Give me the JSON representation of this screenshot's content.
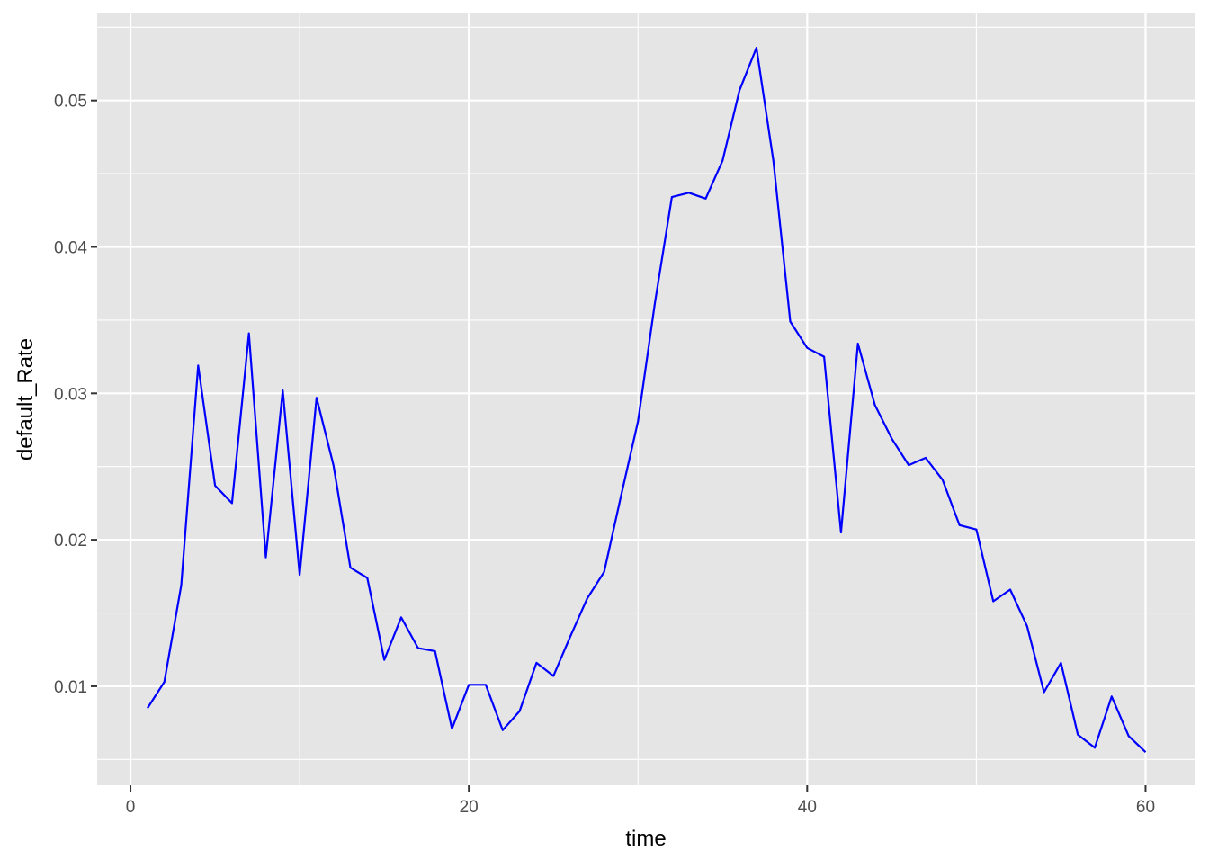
{
  "chart_data": {
    "type": "line",
    "title": "",
    "xlabel": "time",
    "ylabel": "default_Rate",
    "xlim": [
      -1.97,
      62.9
    ],
    "ylim": [
      0.00324,
      0.056
    ],
    "xticks": [
      0,
      20,
      40,
      60
    ],
    "xtick_labels": [
      "0",
      "20",
      "40",
      "60"
    ],
    "yticks": [
      0.01,
      0.02,
      0.03,
      0.04,
      0.05
    ],
    "ytick_labels": [
      "0.01",
      "0.02",
      "0.03",
      "0.04",
      "0.05"
    ],
    "grid": true,
    "legend": "none",
    "colors": {
      "line": "#0000FF",
      "panel": "#E5E5E5",
      "grid": "#FFFFFF"
    },
    "series": [
      {
        "x": [
          1,
          2,
          3,
          4,
          5,
          6,
          7,
          8,
          9,
          10,
          11,
          12,
          13,
          14,
          15,
          16,
          17,
          18,
          19,
          20,
          21,
          22,
          23,
          24,
          25,
          26,
          27,
          28,
          29,
          30,
          31,
          32,
          33,
          34,
          35,
          36,
          37,
          38,
          39,
          40,
          41,
          42,
          43,
          44,
          45,
          46,
          47,
          48,
          49,
          50,
          51,
          52,
          53,
          54,
          55,
          56,
          57,
          58,
          59,
          60
        ],
        "values": [
          0.0085,
          0.0103,
          0.0169,
          0.0319,
          0.0237,
          0.0225,
          0.0341,
          0.0188,
          0.0302,
          0.0176,
          0.0297,
          0.0251,
          0.0181,
          0.0174,
          0.0118,
          0.0147,
          0.0126,
          0.0124,
          0.0071,
          0.0101,
          0.0101,
          0.007,
          0.0083,
          0.0116,
          0.0107,
          0.0134,
          0.016,
          0.0178,
          0.023,
          0.0281,
          0.0362,
          0.0434,
          0.0437,
          0.0433,
          0.0459,
          0.0507,
          0.0536,
          0.0459,
          0.0349,
          0.0331,
          0.0325,
          0.0205,
          0.0334,
          0.0292,
          0.0269,
          0.0251,
          0.0256,
          0.0241,
          0.021,
          0.0207,
          0.0158,
          0.0166,
          0.0141,
          0.0096,
          0.0116,
          0.0067,
          0.0058,
          0.0093,
          0.0066,
          0.0055
        ]
      }
    ]
  }
}
